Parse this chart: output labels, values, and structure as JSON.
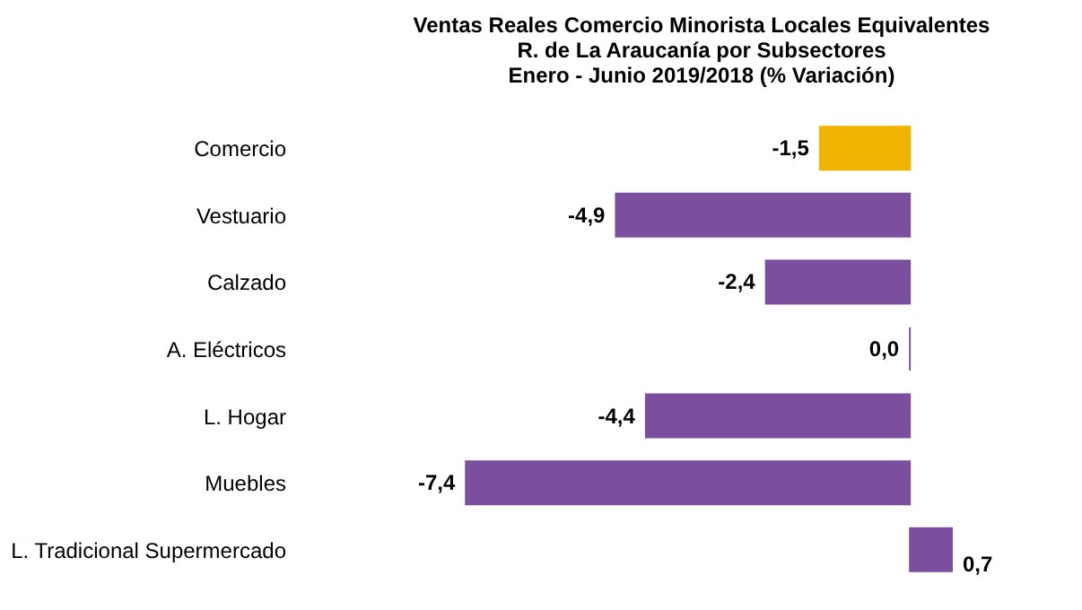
{
  "chart_data": {
    "type": "bar",
    "orientation": "horizontal",
    "title": "Ventas Reales Comercio Minorista Locales Equivalentes\nR. de La Araucanía por Subsectores\nEnero -  Junio  2019/2018  (% Variación)",
    "categories": [
      "Comercio",
      "Vestuario",
      "Calzado",
      "A. Eléctricos",
      "L. Hogar",
      "Muebles",
      "L. Tradicional Supermercado"
    ],
    "values": [
      -1.5,
      -4.9,
      -2.4,
      0.0,
      -4.4,
      -7.4,
      0.7
    ],
    "value_labels": [
      "-1,5",
      "-4,9",
      "-2,4",
      "0,0",
      "-4,4",
      "-7,4",
      "0,7"
    ],
    "colors": [
      "#f0b400",
      "#7b4f9e",
      "#7b4f9e",
      "#7b4f9e",
      "#7b4f9e",
      "#7b4f9e",
      "#7b4f9e"
    ],
    "tick_labels": "y"
  }
}
